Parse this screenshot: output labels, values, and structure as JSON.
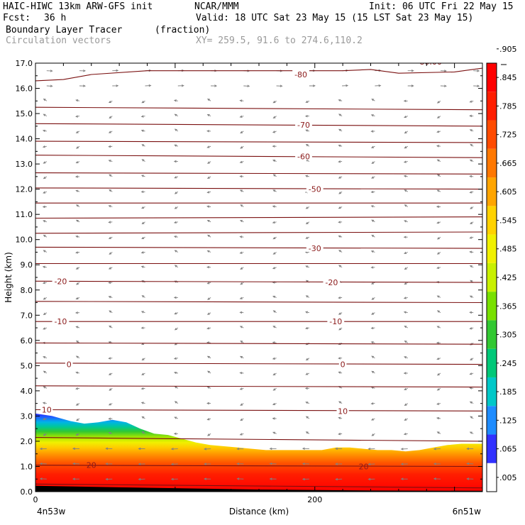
{
  "header": {
    "model": "HAIC-HIWC 13km ARW-GFS init",
    "org": "NCAR/MMM",
    "init": "Init: 06 UTC Fri 22 May 15",
    "fcst_label": "Fcst:",
    "fcst_value": "36 h",
    "valid": "Valid: 18 UTC Sat 23 May 15 (15 LST Sat 23 May 15)",
    "field": "Boundary Layer Tracer",
    "units": "(fraction)",
    "vectors": "Circulation vectors",
    "xy": "XY= 259.5, 91.6 to 274.6,110.2"
  },
  "chart_data": {
    "type": "heatmap",
    "xlabel": "Distance (km)",
    "ylabel": "Height (km)",
    "xlim": [
      0,
      320
    ],
    "ylim": [
      0.0,
      17.0
    ],
    "x_ticks": [
      {
        "v": 0,
        "label": "0"
      },
      {
        "v": 200,
        "label": "200"
      }
    ],
    "x_end_labels": {
      "left": "4n53w",
      "right": "6n51w"
    },
    "y_ticks": [
      "0.0",
      "1.0",
      "2.0",
      "3.0",
      "4.0",
      "5.0",
      "6.0",
      "7.0",
      "8.0",
      "9.0",
      "10.0",
      "11.0",
      "12.0",
      "13.0",
      "14.0",
      "15.0",
      "16.0",
      "17.0"
    ],
    "tracer_top_km": [
      [
        0,
        3.1
      ],
      [
        12,
        3.0
      ],
      [
        25,
        2.8
      ],
      [
        35,
        2.7
      ],
      [
        45,
        2.75
      ],
      [
        55,
        2.85
      ],
      [
        65,
        2.75
      ],
      [
        75,
        2.5
      ],
      [
        85,
        2.3
      ],
      [
        95,
        2.25
      ],
      [
        105,
        2.1
      ],
      [
        115,
        1.95
      ],
      [
        125,
        1.85
      ],
      [
        135,
        1.8
      ],
      [
        145,
        1.75
      ],
      [
        155,
        1.7
      ],
      [
        165,
        1.65
      ],
      [
        175,
        1.65
      ],
      [
        185,
        1.65
      ],
      [
        195,
        1.65
      ],
      [
        205,
        1.65
      ],
      [
        215,
        1.75
      ],
      [
        225,
        1.75
      ],
      [
        235,
        1.7
      ],
      [
        245,
        1.65
      ],
      [
        255,
        1.65
      ],
      [
        265,
        1.6
      ],
      [
        275,
        1.65
      ],
      [
        285,
        1.75
      ],
      [
        295,
        1.85
      ],
      [
        305,
        1.9
      ],
      [
        320,
        1.9
      ]
    ],
    "terrain_km": [
      [
        0,
        0.22
      ],
      [
        80,
        0.14
      ],
      [
        160,
        0.07
      ],
      [
        240,
        0.03
      ],
      [
        320,
        0.02
      ]
    ],
    "temperature_contours": [
      {
        "label": "-80",
        "pts": [
          [
            0,
            16.3
          ],
          [
            20,
            16.35
          ],
          [
            40,
            16.55
          ],
          [
            80,
            16.7
          ],
          [
            160,
            16.7
          ],
          [
            220,
            16.7
          ],
          [
            240,
            16.75
          ],
          [
            260,
            16.6
          ],
          [
            300,
            16.65
          ],
          [
            320,
            16.8
          ]
        ]
      },
      {
        "label": "",
        "pts": [
          [
            0,
            15.25
          ],
          [
            320,
            15.15
          ]
        ]
      },
      {
        "label": "-70",
        "pts": [
          [
            0,
            14.6
          ],
          [
            320,
            14.5
          ]
        ]
      },
      {
        "label": "",
        "pts": [
          [
            0,
            13.9
          ],
          [
            320,
            13.85
          ]
        ]
      },
      {
        "label": "-60",
        "pts": [
          [
            0,
            13.35
          ],
          [
            320,
            13.25
          ]
        ]
      },
      {
        "label": "",
        "pts": [
          [
            0,
            12.65
          ],
          [
            320,
            12.6
          ]
        ]
      },
      {
        "label": "-50",
        "pts": [
          [
            0,
            12.05
          ],
          [
            320,
            12.0
          ]
        ]
      },
      {
        "label": "",
        "pts": [
          [
            0,
            11.45
          ],
          [
            320,
            11.45
          ]
        ]
      },
      {
        "label": "",
        "pts": [
          [
            0,
            10.85
          ],
          [
            320,
            10.9
          ]
        ]
      },
      {
        "label": "",
        "pts": [
          [
            0,
            10.25
          ],
          [
            320,
            10.3
          ]
        ]
      },
      {
        "label": "-30",
        "pts": [
          [
            0,
            9.7
          ],
          [
            320,
            9.65
          ]
        ]
      },
      {
        "label": "",
        "pts": [
          [
            0,
            9.05
          ],
          [
            320,
            9.05
          ]
        ]
      },
      {
        "label": "-20",
        "pts": [
          [
            0,
            8.35
          ],
          [
            320,
            8.3
          ]
        ]
      },
      {
        "label": "",
        "pts": [
          [
            0,
            7.55
          ],
          [
            320,
            7.5
          ]
        ]
      },
      {
        "label": "-10",
        "pts": [
          [
            0,
            6.75
          ],
          [
            320,
            6.75
          ]
        ]
      },
      {
        "label": "",
        "pts": [
          [
            0,
            5.9
          ],
          [
            320,
            5.85
          ]
        ]
      },
      {
        "label": "0",
        "pts": [
          [
            0,
            5.1
          ],
          [
            320,
            5.05
          ]
        ]
      },
      {
        "label": "",
        "pts": [
          [
            0,
            4.2
          ],
          [
            320,
            4.15
          ]
        ]
      },
      {
        "label": "10",
        "pts": [
          [
            0,
            3.25
          ],
          [
            320,
            3.2
          ]
        ]
      },
      {
        "label": "",
        "pts": [
          [
            0,
            2.15
          ],
          [
            100,
            2.1
          ],
          [
            320,
            2.0
          ]
        ]
      },
      {
        "label": "20",
        "pts": [
          [
            0,
            1.05
          ],
          [
            320,
            1.0
          ]
        ]
      },
      {
        "label": "",
        "pts": [
          [
            0,
            0.3
          ],
          [
            320,
            0.15
          ]
        ]
      }
    ],
    "contour_label_positions": [
      {
        "label": "-80",
        "x": 190,
        "y": 16.55
      },
      {
        "label": "-80.00",
        "x": 282,
        "y": 17.05
      },
      {
        "label": "-70",
        "x": 192,
        "y": 14.55
      },
      {
        "label": "-60",
        "x": 192,
        "y": 13.3
      },
      {
        "label": "-50",
        "x": 200,
        "y": 12.0
      },
      {
        "label": "-30",
        "x": 200,
        "y": 9.65
      },
      {
        "label": "-20",
        "x": 18,
        "y": 8.35
      },
      {
        "label": "-20",
        "x": 212,
        "y": 8.3
      },
      {
        "label": "-10",
        "x": 18,
        "y": 6.75
      },
      {
        "label": "-10",
        "x": 215,
        "y": 6.75
      },
      {
        "label": "0",
        "x": 24,
        "y": 5.05
      },
      {
        "label": "0",
        "x": 220,
        "y": 5.05
      },
      {
        "label": "10",
        "x": 8,
        "y": 3.25
      },
      {
        "label": "10",
        "x": 220,
        "y": 3.2
      },
      {
        "label": "20",
        "x": 40,
        "y": 1.05
      },
      {
        "label": "20",
        "x": 235,
        "y": 1.0
      }
    ],
    "colorbar": {
      "colors": [
        "#ffffff",
        "#3232ff",
        "#1e8cff",
        "#00c8c8",
        "#00c878",
        "#32c832",
        "#78e000",
        "#c8f000",
        "#f0f000",
        "#ffd200",
        "#ffa500",
        "#ff7800",
        "#ff4b00",
        "#ff1e00",
        "#ff0000"
      ],
      "labels": [
        ".005",
        ".065",
        ".125",
        ".185",
        ".245",
        ".305",
        ".365",
        ".425",
        ".485",
        ".545",
        ".605",
        ".665",
        ".725",
        ".785",
        ".845",
        ".905"
      ]
    }
  }
}
